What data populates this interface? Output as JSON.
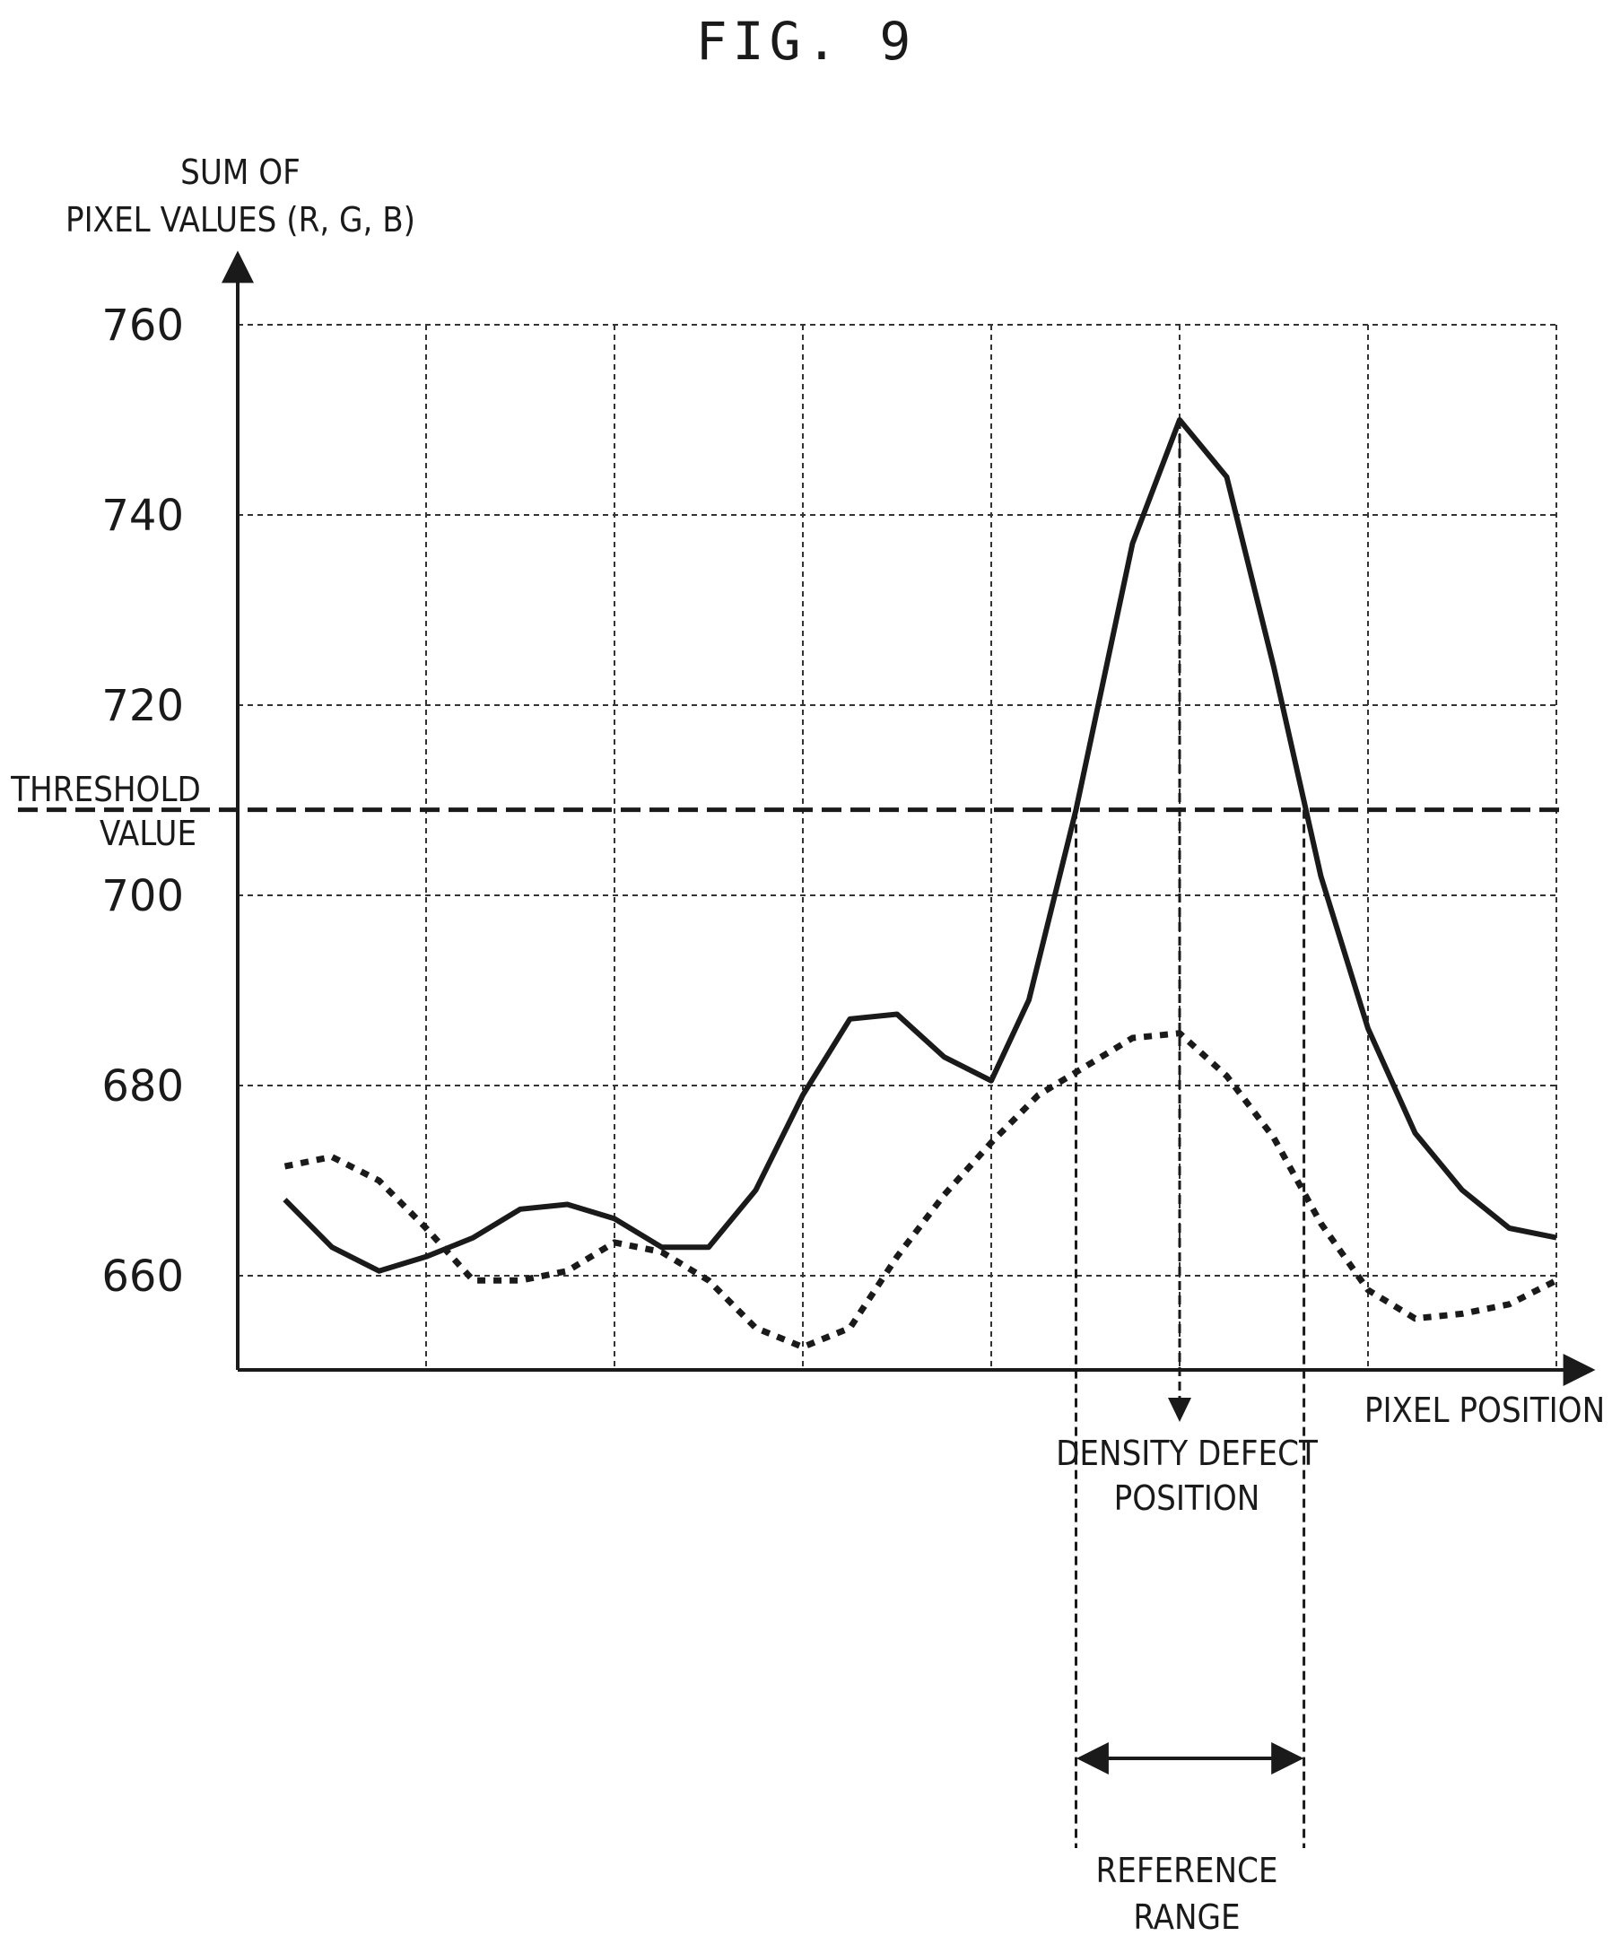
{
  "figure": {
    "title": "FIG. 9"
  },
  "chart_data": {
    "type": "line",
    "ylabel_line1": "SUM OF",
    "ylabel_line2": "PIXEL VALUES (R, G, B)",
    "xlabel": "PIXEL POSITION",
    "ylim": [
      650,
      760
    ],
    "yticks": [
      660,
      680,
      700,
      720,
      740,
      760
    ],
    "ytick_labels": [
      "660",
      "680",
      "700",
      "720",
      "740",
      "760"
    ],
    "x_range": [
      0,
      7
    ],
    "x_gridlines": [
      1,
      2,
      3,
      4,
      5,
      6,
      7
    ],
    "grid": true,
    "threshold": {
      "label_line1": "THRESHOLD",
      "label_line2": "VALUE",
      "value": 709
    },
    "series": [
      {
        "style": "solid",
        "x": [
          0.25,
          0.5,
          0.75,
          1.0,
          1.25,
          1.5,
          1.75,
          2.0,
          2.25,
          2.5,
          2.75,
          3.0,
          3.25,
          3.5,
          3.75,
          4.0,
          4.2,
          4.45,
          4.75,
          5.0,
          5.25,
          5.5,
          5.75,
          6.0,
          6.25,
          6.5,
          6.75,
          7.0
        ],
        "y": [
          668,
          663,
          660.5,
          662,
          664,
          667,
          667.5,
          666,
          663,
          663,
          669,
          679,
          687,
          687.5,
          683,
          680.5,
          689,
          709,
          737,
          750,
          744,
          724,
          702,
          686,
          675,
          669,
          665,
          664
        ]
      },
      {
        "style": "dotted",
        "x": [
          0.25,
          0.5,
          0.75,
          1.0,
          1.25,
          1.5,
          1.75,
          2.0,
          2.25,
          2.5,
          2.75,
          3.0,
          3.25,
          3.5,
          3.75,
          4.0,
          4.25,
          4.5,
          4.75,
          5.0,
          5.25,
          5.5,
          5.75,
          6.0,
          6.25,
          6.5,
          6.75,
          7.0
        ],
        "y": [
          671.5,
          672.5,
          670,
          665,
          659.5,
          659.5,
          660.5,
          663.5,
          662.5,
          659.5,
          654.5,
          652.5,
          654.5,
          662,
          668.5,
          674,
          679,
          682,
          685,
          685.5,
          681,
          674.5,
          665.5,
          658.5,
          655.5,
          656,
          657,
          659.5
        ]
      }
    ],
    "annotations": [
      {
        "text_line1": "DENSITY DEFECT",
        "text_line2": "POSITION",
        "x": 5.0
      },
      {
        "text_line1": "REFERENCE",
        "text_line2": "RANGE",
        "x_start": 4.45,
        "x_end": 5.66
      }
    ]
  }
}
